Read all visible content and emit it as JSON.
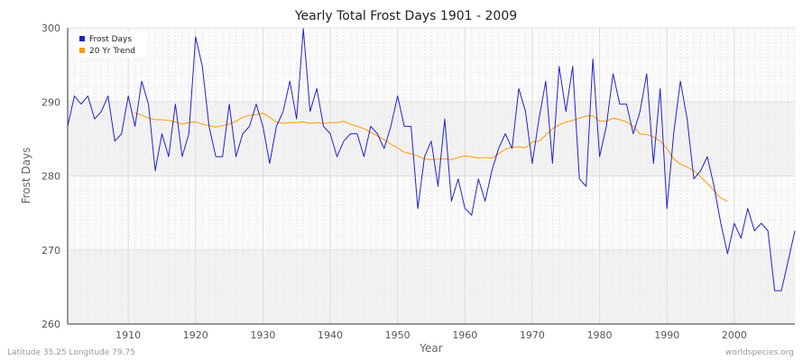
{
  "chart_data": {
    "type": "line",
    "title": "Yearly Total Frost Days 1901 - 2009",
    "xlabel": "Year",
    "ylabel": "Frost Days",
    "xlim": [
      1901,
      2009
    ],
    "ylim": [
      260,
      300
    ],
    "x_ticks": [
      1910,
      1920,
      1930,
      1940,
      1950,
      1960,
      1970,
      1980,
      1990,
      2000
    ],
    "y_ticks": [
      260,
      270,
      280,
      290,
      300
    ],
    "grid": true,
    "legend_position": "top-left",
    "series": [
      {
        "name": "Frost Days",
        "color": "#2222cc",
        "x": [
          1901,
          1902,
          1903,
          1904,
          1905,
          1906,
          1907,
          1908,
          1909,
          1910,
          1911,
          1912,
          1913,
          1914,
          1915,
          1916,
          1917,
          1918,
          1919,
          1920,
          1921,
          1922,
          1923,
          1924,
          1925,
          1926,
          1927,
          1928,
          1929,
          1930,
          1931,
          1932,
          1933,
          1934,
          1935,
          1936,
          1937,
          1938,
          1939,
          1940,
          1941,
          1942,
          1943,
          1944,
          1945,
          1946,
          1947,
          1948,
          1949,
          1950,
          1951,
          1952,
          1953,
          1954,
          1955,
          1956,
          1957,
          1958,
          1959,
          1960,
          1961,
          1962,
          1963,
          1964,
          1965,
          1966,
          1967,
          1968,
          1969,
          1970,
          1971,
          1972,
          1973,
          1974,
          1975,
          1976,
          1977,
          1978,
          1979,
          1980,
          1981,
          1982,
          1983,
          1984,
          1985,
          1986,
          1987,
          1988,
          1989,
          1990,
          1991,
          1992,
          1993,
          1994,
          1995,
          1996,
          1997,
          1998,
          1999,
          2000,
          2001,
          2002,
          2003,
          2004,
          2005,
          2006,
          2007,
          2008,
          2009
        ],
        "values": [
          286.7,
          290.8,
          289.7,
          290.8,
          287.7,
          288.7,
          290.8,
          284.7,
          285.7,
          290.8,
          286.7,
          292.8,
          289.7,
          280.7,
          285.7,
          282.6,
          289.7,
          282.6,
          285.7,
          298.8,
          294.8,
          286.7,
          282.6,
          282.6,
          289.7,
          282.6,
          285.7,
          286.7,
          289.7,
          286.7,
          281.7,
          286.7,
          288.7,
          292.8,
          287.7,
          299.9,
          288.7,
          291.8,
          286.7,
          285.7,
          282.6,
          284.7,
          285.7,
          285.7,
          282.6,
          286.7,
          285.7,
          283.7,
          286.7,
          290.8,
          286.7,
          286.7,
          275.6,
          282.6,
          284.7,
          278.6,
          287.7,
          276.6,
          279.6,
          275.6,
          274.7,
          279.6,
          276.6,
          280.7,
          283.7,
          285.7,
          283.7,
          291.8,
          288.7,
          281.7,
          287.7,
          292.8,
          281.7,
          294.8,
          288.7,
          294.8,
          279.6,
          278.6,
          295.8,
          282.6,
          286.7,
          293.8,
          289.7,
          289.7,
          285.7,
          288.7,
          293.8,
          281.7,
          291.8,
          275.6,
          285.7,
          292.8,
          287.7,
          279.6,
          280.7,
          282.6,
          278.6,
          273.6,
          269.5,
          273.6,
          271.6,
          275.6,
          272.6,
          273.6,
          272.6,
          264.5,
          264.5,
          268.5,
          272.6
        ]
      },
      {
        "name": "20 Yr Trend",
        "color": "#ff9900",
        "x": [
          1911,
          1912,
          1913,
          1914,
          1915,
          1916,
          1917,
          1918,
          1919,
          1920,
          1921,
          1922,
          1923,
          1924,
          1925,
          1926,
          1927,
          1928,
          1929,
          1930,
          1931,
          1932,
          1933,
          1934,
          1935,
          1936,
          1937,
          1938,
          1939,
          1940,
          1941,
          1942,
          1943,
          1944,
          1945,
          1946,
          1947,
          1948,
          1949,
          1950,
          1951,
          1952,
          1953,
          1954,
          1955,
          1956,
          1957,
          1958,
          1959,
          1960,
          1961,
          1962,
          1963,
          1964,
          1965,
          1966,
          1967,
          1968,
          1969,
          1970,
          1971,
          1972,
          1973,
          1974,
          1975,
          1976,
          1977,
          1978,
          1979,
          1980,
          1981,
          1982,
          1983,
          1984,
          1985,
          1986,
          1987,
          1988,
          1989,
          1990,
          1991,
          1992,
          1993,
          1994,
          1995,
          1996,
          1997,
          1998,
          1999
        ],
        "values": [
          288.5,
          288.2,
          287.8,
          287.6,
          287.6,
          287.5,
          287.3,
          287.0,
          287.2,
          287.3,
          287.0,
          286.8,
          286.6,
          286.8,
          287.0,
          287.4,
          287.9,
          288.2,
          288.3,
          288.5,
          287.9,
          287.3,
          287.1,
          287.2,
          287.2,
          287.3,
          287.1,
          287.2,
          287.1,
          287.2,
          287.2,
          287.4,
          287.0,
          286.7,
          286.4,
          285.9,
          285.4,
          284.9,
          284.3,
          283.8,
          283.2,
          283.0,
          282.7,
          282.3,
          282.2,
          282.3,
          282.3,
          282.2,
          282.5,
          282.7,
          282.6,
          282.4,
          282.5,
          282.4,
          283.0,
          283.6,
          283.9,
          283.9,
          283.8,
          284.6,
          284.7,
          285.5,
          286.4,
          286.9,
          287.3,
          287.5,
          287.8,
          288.1,
          288.1,
          287.4,
          287.4,
          287.8,
          287.6,
          287.3,
          286.7,
          285.7,
          285.6,
          285.3,
          284.7,
          283.7,
          282.3,
          281.6,
          281.2,
          280.7,
          279.9,
          279.0,
          278.0,
          277.0,
          276.6
        ]
      }
    ]
  },
  "footer": {
    "location": "Latitude 35.25 Longitude 79.75",
    "credit": "worldspecies.org"
  }
}
